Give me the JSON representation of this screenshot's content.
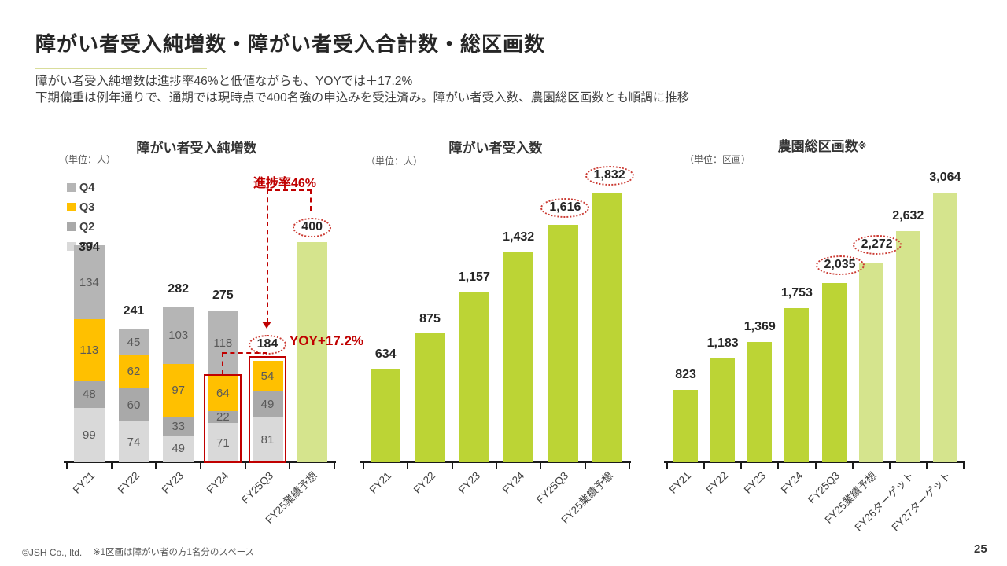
{
  "slide": {
    "title": "障がい者受入純増数・障がい者受入合計数・総区画数",
    "subtitle_line1": "障がい者受入純増数は進捗率46%と低値ながらも、YOYでは＋17.2%",
    "subtitle_line2": "下期偏重は例年通りで、通期では現時点で400名強の申込みを受注済み。障がい者受入数、農園総区画数とも順調に推移",
    "footnote": "※1区画は障がい者の方1名分のスペース",
    "copyright": "©JSH Co., ltd.",
    "page_number": "25"
  },
  "colors": {
    "green_bar": "#bcd435",
    "light_green_bar": "#d5e48d",
    "orange": "#ffc000",
    "gray_q4": "#b5b5b5",
    "gray_q2": "#a9a9a9",
    "gray_q1": "#d9d9d9",
    "annotation_red": "#c00000",
    "circle_red": "#cb3a32",
    "axis_black": "#1a1a1a",
    "title_underline": "#d9dd9b"
  },
  "chart_data": [
    {
      "type": "bar",
      "subtype": "stacked",
      "title": "障がい者受入純増数",
      "unit_label": "（単位：人）",
      "legend": [
        {
          "label": "Q4",
          "color": "#b5b5b5"
        },
        {
          "label": "Q3",
          "color": "#ffc000"
        },
        {
          "label": "Q2",
          "color": "#a9a9a9"
        },
        {
          "label": "Q1",
          "color": "#d9d9d9"
        }
      ],
      "categories": [
        "FY21",
        "FY22",
        "FY23",
        "FY24",
        "FY25Q3",
        "FY25業績予想"
      ],
      "series": [
        {
          "name": "Q1",
          "color": "#d9d9d9",
          "values": [
            99,
            74,
            49,
            71,
            81,
            0
          ]
        },
        {
          "name": "Q2",
          "color": "#a9a9a9",
          "values": [
            48,
            60,
            33,
            22,
            49,
            0
          ]
        },
        {
          "name": "Q3",
          "color": "#ffc000",
          "values": [
            113,
            62,
            97,
            64,
            54,
            0
          ]
        },
        {
          "name": "Q4",
          "color": "#b5b5b5",
          "values": [
            134,
            45,
            103,
            118,
            0,
            0
          ]
        }
      ],
      "forecast": {
        "category": "FY25業績予想",
        "value": 400,
        "color": "#d5e48d"
      },
      "totals_numeric": [
        394,
        241,
        282,
        275,
        184,
        400
      ],
      "totals": [
        "394",
        "241",
        "282",
        "275",
        "184",
        "400"
      ],
      "circled": [
        false,
        false,
        false,
        false,
        true,
        true
      ],
      "annotations": {
        "progress": "進捗率46%",
        "yoy": "YOY+17.2%"
      },
      "highlight_boxes": [
        "FY24下期除く(71+22+64)",
        "FY25Q3"
      ],
      "ylim": [
        0,
        457
      ],
      "grid": false,
      "legend_position": "top-left"
    },
    {
      "type": "bar",
      "title": "障がい者受入数",
      "unit_label": "（単位：人）",
      "categories": [
        "FY21",
        "FY22",
        "FY23",
        "FY24",
        "FY25Q3",
        "FY25業績予想"
      ],
      "values": [
        634,
        875,
        1157,
        1432,
        1616,
        1832
      ],
      "labels": [
        "634",
        "875",
        "1,157",
        "1,432",
        "1,616",
        "1,832"
      ],
      "circled": [
        false,
        false,
        false,
        false,
        true,
        true
      ],
      "bar_color": "#bcd435",
      "ylim": [
        0,
        1870
      ],
      "grid": false
    },
    {
      "type": "bar",
      "title": "農園総区画数",
      "title_suffix": "※",
      "unit_label": "（単位：区画）",
      "categories": [
        "FY21",
        "FY22",
        "FY23",
        "FY24",
        "FY25Q3",
        "FY25業績予想",
        "FY26ターゲット",
        "FY27ターゲット"
      ],
      "values": [
        823,
        1183,
        1369,
        1753,
        2035,
        2272,
        2632,
        3064
      ],
      "labels": [
        "823",
        "1,183",
        "1,369",
        "1,753",
        "2,035",
        "2,272",
        "2,632",
        "3,064"
      ],
      "circled": [
        false,
        false,
        false,
        false,
        true,
        true,
        false,
        false
      ],
      "bar_colors": [
        "#bcd435",
        "#bcd435",
        "#bcd435",
        "#bcd435",
        "#bcd435",
        "#d5e48d",
        "#d5e48d",
        "#d5e48d"
      ],
      "ylim": [
        0,
        3130
      ],
      "grid": false
    }
  ]
}
